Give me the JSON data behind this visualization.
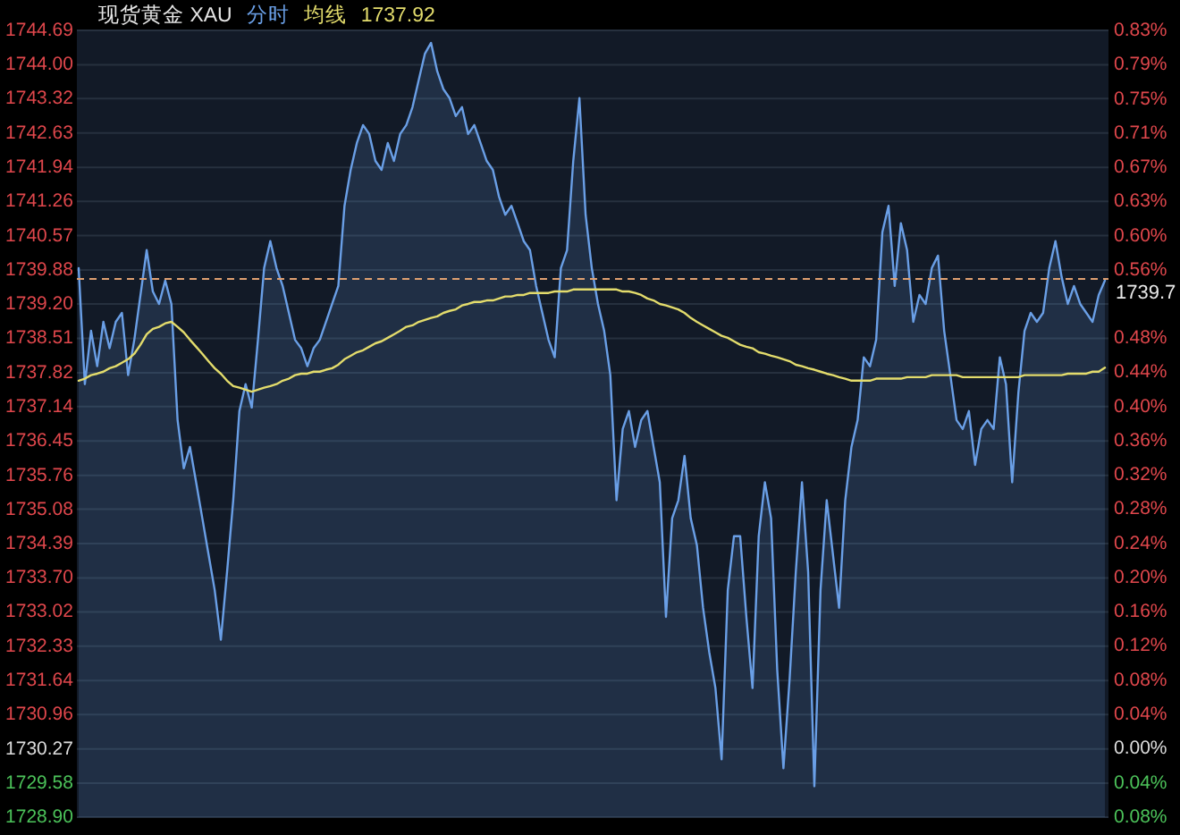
{
  "chart_data": {
    "type": "area",
    "title": "现货黄金 XAU",
    "categories": [
      null,
      null,
      null,
      null,
      null,
      null,
      null,
      null,
      null,
      null,
      null,
      null,
      null,
      null,
      null,
      null,
      null,
      null,
      null,
      null,
      null,
      null,
      null,
      null,
      null,
      null,
      null,
      null,
      null,
      null,
      null,
      null,
      null,
      null,
      null,
      null,
      null,
      null,
      null,
      null,
      null,
      null,
      null,
      null,
      null,
      null,
      null,
      null,
      null,
      null,
      null,
      null,
      null,
      null,
      null,
      null,
      null,
      null,
      null,
      null,
      null,
      null,
      null,
      null,
      null,
      null,
      null,
      null,
      null,
      null,
      null,
      null,
      null,
      null,
      null,
      null,
      null,
      null,
      null,
      null,
      null,
      null,
      null,
      null,
      null,
      null,
      null,
      null,
      null,
      null,
      null,
      null,
      null,
      null,
      null,
      null,
      null,
      null,
      null,
      null,
      null,
      null,
      null,
      null,
      null,
      null,
      null,
      null,
      null,
      null,
      null,
      null,
      null,
      null,
      null,
      null,
      null,
      null,
      null,
      null,
      null,
      null,
      null,
      null,
      null,
      null,
      null,
      null,
      null,
      null,
      null,
      null,
      null,
      null,
      null,
      null,
      null,
      null,
      null,
      null,
      null,
      null,
      null,
      null,
      null,
      null,
      null,
      null,
      null,
      null,
      null,
      null,
      null,
      null,
      null,
      null,
      null,
      null,
      null,
      null,
      null,
      null,
      null,
      null,
      null,
      null,
      null
    ],
    "series": [
      {
        "name": "分时",
        "color": "#6a9fe6",
        "values": [
          1739.92,
          1737.59,
          1738.66,
          1737.95,
          1738.84,
          1738.31,
          1738.84,
          1739.02,
          1737.77,
          1738.48,
          1739.38,
          1740.28,
          1739.45,
          1739.2,
          1739.67,
          1739.2,
          1736.87,
          1735.9,
          1736.33,
          1735.62,
          1734.9,
          1734.18,
          1733.46,
          1732.46,
          1733.82,
          1735.26,
          1737.05,
          1737.59,
          1737.12,
          1738.48,
          1739.92,
          1740.46,
          1739.92,
          1739.56,
          1739.02,
          1738.48,
          1738.31,
          1737.95,
          1738.31,
          1738.48,
          1738.84,
          1739.2,
          1739.56,
          1741.17,
          1741.89,
          1742.43,
          1742.79,
          1742.61,
          1742.07,
          1741.89,
          1742.43,
          1742.07,
          1742.61,
          1742.79,
          1743.15,
          1743.69,
          1744.22,
          1744.44,
          1743.87,
          1743.51,
          1743.33,
          1742.97,
          1743.15,
          1742.61,
          1742.79,
          1742.43,
          1742.07,
          1741.89,
          1741.35,
          1740.99,
          1741.17,
          1740.82,
          1740.46,
          1740.28,
          1739.56,
          1739.02,
          1738.48,
          1738.13,
          1739.92,
          1740.28,
          1742.07,
          1743.33,
          1740.99,
          1739.92,
          1739.2,
          1738.66,
          1737.77,
          1735.26,
          1736.69,
          1737.05,
          1736.33,
          1736.87,
          1737.05,
          1736.33,
          1735.62,
          1732.92,
          1734.9,
          1735.26,
          1736.15,
          1734.9,
          1734.36,
          1733.1,
          1732.21,
          1731.49,
          1730.06,
          1733.46,
          1734.54,
          1734.54,
          1732.92,
          1731.49,
          1734.54,
          1735.62,
          1734.9,
          1731.85,
          1729.88,
          1731.67,
          1733.82,
          1735.62,
          1733.82,
          1729.52,
          1733.46,
          1735.26,
          1734.18,
          1733.1,
          1735.26,
          1736.33,
          1736.87,
          1738.13,
          1737.95,
          1738.48,
          1740.64,
          1741.17,
          1739.56,
          1740.82,
          1740.28,
          1738.84,
          1739.38,
          1739.2,
          1739.92,
          1740.17,
          1738.66,
          1737.77,
          1736.87,
          1736.69,
          1737.05,
          1735.97,
          1736.69,
          1736.87,
          1736.69,
          1738.13,
          1737.59,
          1735.62,
          1737.41,
          1738.66,
          1739.02,
          1738.84,
          1739.02,
          1739.92,
          1740.46,
          1739.74,
          1739.2,
          1739.56,
          1739.2,
          1739.02,
          1738.84,
          1739.38,
          1739.67
        ]
      },
      {
        "name": "均线",
        "type": "line",
        "color": "#e3dc6c",
        "values": [
          1737.66,
          1737.7,
          1737.77,
          1737.8,
          1737.84,
          1737.91,
          1737.95,
          1738.02,
          1738.09,
          1738.2,
          1738.38,
          1738.59,
          1738.7,
          1738.74,
          1738.81,
          1738.84,
          1738.74,
          1738.63,
          1738.48,
          1738.34,
          1738.2,
          1738.05,
          1737.91,
          1737.8,
          1737.66,
          1737.55,
          1737.52,
          1737.48,
          1737.44,
          1737.48,
          1737.52,
          1737.55,
          1737.59,
          1737.66,
          1737.7,
          1737.77,
          1737.8,
          1737.8,
          1737.84,
          1737.84,
          1737.88,
          1737.91,
          1737.98,
          1738.09,
          1738.16,
          1738.23,
          1738.27,
          1738.34,
          1738.41,
          1738.45,
          1738.52,
          1738.59,
          1738.66,
          1738.74,
          1738.77,
          1738.84,
          1738.88,
          1738.92,
          1738.95,
          1739.02,
          1739.06,
          1739.09,
          1739.17,
          1739.2,
          1739.24,
          1739.24,
          1739.27,
          1739.27,
          1739.31,
          1739.35,
          1739.35,
          1739.38,
          1739.38,
          1739.42,
          1739.42,
          1739.42,
          1739.42,
          1739.45,
          1739.45,
          1739.45,
          1739.49,
          1739.49,
          1739.49,
          1739.49,
          1739.49,
          1739.49,
          1739.49,
          1739.49,
          1739.45,
          1739.45,
          1739.42,
          1739.38,
          1739.31,
          1739.27,
          1739.2,
          1739.17,
          1739.13,
          1739.09,
          1739.02,
          1738.92,
          1738.84,
          1738.77,
          1738.7,
          1738.63,
          1738.56,
          1738.52,
          1738.45,
          1738.38,
          1738.34,
          1738.31,
          1738.23,
          1738.2,
          1738.16,
          1738.13,
          1738.09,
          1738.05,
          1737.98,
          1737.95,
          1737.91,
          1737.88,
          1737.84,
          1737.8,
          1737.77,
          1737.73,
          1737.7,
          1737.66,
          1737.66,
          1737.66,
          1737.66,
          1737.7,
          1737.7,
          1737.7,
          1737.7,
          1737.7,
          1737.73,
          1737.73,
          1737.73,
          1737.73,
          1737.77,
          1737.77,
          1737.77,
          1737.77,
          1737.77,
          1737.73,
          1737.73,
          1737.73,
          1737.73,
          1737.73,
          1737.73,
          1737.73,
          1737.73,
          1737.73,
          1737.73,
          1737.77,
          1737.77,
          1737.77,
          1737.77,
          1737.77,
          1737.77,
          1737.77,
          1737.8,
          1737.8,
          1737.8,
          1737.8,
          1737.84,
          1737.84,
          1737.92
        ]
      }
    ],
    "ylim": [
      1728.9,
      1744.69
    ],
    "yticks": [
      1744.69,
      {
        "value": 1744.0,
        "label": "1744.00"
      },
      1743.32,
      1742.63,
      1741.94,
      1741.26,
      1740.57,
      1739.88,
      {
        "value": 1739.2,
        "label": "1739.20"
      },
      1738.51,
      1737.82,
      1737.14,
      1736.45,
      1735.76,
      1735.08,
      1734.39,
      {
        "value": 1733.7,
        "label": "1733.70"
      },
      1733.02,
      1732.33,
      1731.64,
      1730.96,
      1730.27,
      1729.58,
      {
        "value": 1728.9,
        "label": "1728.90"
      }
    ],
    "y2lim": [
      -0.0795,
      0.8334
    ],
    "y2ticks": [
      {
        "value": 0.8334,
        "label": "0.83%"
      },
      {
        "value": 0.7937,
        "label": "0.79%"
      },
      {
        "value": 0.754,
        "label": "0.75%"
      },
      {
        "value": 0.7144,
        "label": "0.71%"
      },
      {
        "value": 0.6747,
        "label": "0.67%"
      },
      {
        "value": 0.635,
        "label": "0.63%"
      },
      {
        "value": 0.5953,
        "label": "0.60%"
      },
      {
        "value": 0.5557,
        "label": "0.56%"
      },
      {
        "value": 0.516,
        "label": null
      },
      {
        "value": 0.4763,
        "label": "0.48%"
      },
      {
        "value": 0.4366,
        "label": "0.44%"
      },
      {
        "value": 0.397,
        "label": "0.40%"
      },
      {
        "value": 0.3573,
        "label": "0.36%"
      },
      {
        "value": 0.3176,
        "label": "0.32%"
      },
      {
        "value": 0.2779,
        "label": "0.28%"
      },
      {
        "value": 0.2383,
        "label": "0.24%"
      },
      {
        "value": 0.1986,
        "label": "0.20%"
      },
      {
        "value": 0.1589,
        "label": "0.16%"
      },
      {
        "value": 0.1192,
        "label": "0.12%"
      },
      {
        "value": 0.0795,
        "label": "0.08%"
      },
      {
        "value": 0.0397,
        "label": "0.04%"
      },
      {
        "value": 0,
        "label": "0.00%"
      },
      {
        "value": -0.0397,
        "label": "0.04%"
      },
      {
        "value": -0.0795,
        "label": "0.08%"
      }
    ],
    "ref_lines": [
      {
        "axis": "y",
        "value": 1739.7,
        "label": "1739.7",
        "color": "#e0a070",
        "line_style": "dashed"
      }
    ],
    "annotations": [
      "1737.92"
    ],
    "grid": "y",
    "legend": "top"
  }
}
